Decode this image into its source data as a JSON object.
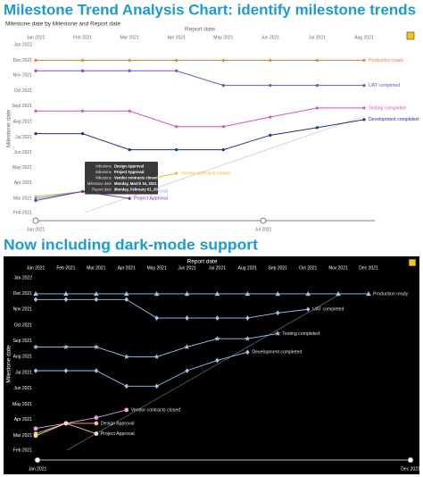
{
  "chart_data": [
    {
      "type": "line",
      "title": "Milestone Trend Analysis Chart: identify milestone trends",
      "subtitle": "Milestone date by Milestone and Report date",
      "background": "#ffffff",
      "text_color": "#666666",
      "x_label": "Report date",
      "y_label": "Milestone date",
      "categories": [
        "Jan 2021",
        "Feb 2021",
        "Mar 2021",
        "Apr 2021",
        "May 2021",
        "Jun 2021",
        "Jul 2021",
        "Aug 2021"
      ],
      "ylim": [
        "2021-02-01",
        "2022-01-01"
      ],
      "yticks": [
        {
          "value": "2022-01-01",
          "label": "Jan 2022"
        },
        {
          "value": "2021-12-01",
          "label": "Dec 2021"
        },
        {
          "value": "2021-11-01",
          "label": "Nov 2021"
        },
        {
          "value": "2021-10-01",
          "label": "Oct 2021"
        },
        {
          "value": "2021-09-01",
          "label": "Sept 2021"
        },
        {
          "value": "2021-08-01",
          "label": "Aug 2021"
        },
        {
          "value": "2021-07-01",
          "label": "Jul 2021"
        },
        {
          "value": "2021-06-01",
          "label": "Jun 2021"
        },
        {
          "value": "2021-05-01",
          "label": "May 2021"
        },
        {
          "value": "2021-04-01",
          "label": "Apr 2021"
        },
        {
          "value": "2021-03-01",
          "label": "Mar 2021"
        },
        {
          "value": "2021-02-01",
          "label": "Feb 2021"
        }
      ],
      "series": [
        {
          "name": "Production ready",
          "color": "#e8823a",
          "marker": "circle",
          "values": [
            "2021-12-01",
            "2021-12-01",
            "2021-12-01",
            "2021-12-01",
            "2021-12-01",
            "2021-12-01",
            "2021-12-01",
            "2021-12-01"
          ]
        },
        {
          "name": "UAT completed",
          "color": "#7b4fc9",
          "marker": "circle",
          "values": [
            "2021-11-10",
            "2021-11-10",
            "2021-11-10",
            "2021-11-10",
            "2021-10-12",
            "2021-10-12",
            "2021-10-12",
            "2021-10-12"
          ]
        },
        {
          "name": "Testing completed",
          "color": "#d64fb8",
          "marker": "circle",
          "values": [
            "2021-08-22",
            "2021-08-22",
            "2021-08-22",
            "2021-07-22",
            "2021-07-22",
            "2021-08-10",
            "2021-08-28",
            "2021-08-28"
          ]
        },
        {
          "name": "Development completed",
          "color": "#1f2f8c",
          "marker": "circle",
          "values": [
            "2021-07-08",
            "2021-07-08",
            "2021-06-06",
            "2021-06-06",
            "2021-06-06",
            "2021-07-05",
            "2021-07-20",
            "2021-08-05"
          ]
        },
        {
          "name": "Vendor contracts closed",
          "color": "#f0b82a",
          "marker": "circle",
          "values": [
            "2021-03-05",
            "2021-03-15",
            "2021-04-01",
            "2021-04-20",
            null,
            null,
            null,
            null
          ]
        },
        {
          "name": "Design Approval",
          "color": "#4aa3df",
          "marker": "circle",
          "values": [
            "2021-03-01",
            "2021-03-15",
            "2021-03-15",
            null,
            null,
            null,
            null,
            null
          ]
        },
        {
          "name": "Project Approval",
          "color": "#7a2fb0",
          "marker": "circle",
          "values": [
            "2021-02-25",
            "2021-03-15",
            "2021-03-01",
            null,
            null,
            null,
            null,
            null
          ]
        }
      ],
      "slider": {
        "from": "Jan 2021",
        "to": "Jul 2021"
      },
      "tooltip": [
        [
          "Milestone",
          "Design Approval"
        ],
        [
          "Milestone",
          "Project Approval"
        ],
        [
          "Milestone",
          "Vendor contracts closed"
        ],
        [
          "Milestone date",
          "Monday, March 15, 2021"
        ],
        [
          "Report date",
          "Monday, February 01, 2021"
        ]
      ]
    },
    {
      "type": "line",
      "title": "Now including dark-mode support",
      "background": "#000000",
      "text_color": "#ffffff",
      "x_label": "Report date",
      "y_label": "Milestone date",
      "categories": [
        "Jan 2021",
        "Feb 2021",
        "Mar 2021",
        "Apr 2021",
        "May 2021",
        "Jun 2021",
        "Jul 2021",
        "Aug 2021",
        "Sep 2021",
        "Oct 2021",
        "Nov 2021",
        "Dec 2021"
      ],
      "ylim": [
        "2021-02-01",
        "2022-01-01"
      ],
      "yticks": [
        {
          "value": "2022-01-01",
          "label": "Jan 2022"
        },
        {
          "value": "2021-12-01",
          "label": "Dec 2021"
        },
        {
          "value": "2021-11-01",
          "label": "Nov 2021"
        },
        {
          "value": "2021-10-01",
          "label": "Oct 2021"
        },
        {
          "value": "2021-09-01",
          "label": "Sep 2021"
        },
        {
          "value": "2021-08-01",
          "label": "Aug 2021"
        },
        {
          "value": "2021-07-01",
          "label": "Jul 2021"
        },
        {
          "value": "2021-06-01",
          "label": "Jun 2021"
        },
        {
          "value": "2021-05-01",
          "label": "May 2021"
        },
        {
          "value": "2021-04-01",
          "label": "Apr 2021"
        },
        {
          "value": "2021-03-01",
          "label": "Mar 2021"
        },
        {
          "value": "2021-02-01",
          "label": "Feb 2021"
        }
      ],
      "series": [
        {
          "name": "Production ready",
          "color": "#9ec9ee",
          "marker": "triangle",
          "values": [
            "2021-12-01",
            "2021-12-01",
            "2021-12-01",
            "2021-12-01",
            "2021-12-01",
            "2021-12-01",
            "2021-12-01",
            "2021-12-01",
            "2021-12-01",
            "2021-12-01",
            "2021-12-01",
            "2021-12-01"
          ]
        },
        {
          "name": "UAT completed",
          "color": "#9ec9ee",
          "marker": "diamond",
          "values": [
            "2021-11-20",
            "2021-11-20",
            "2021-11-20",
            "2021-11-20",
            "2021-10-15",
            "2021-10-15",
            "2021-10-15",
            "2021-10-15",
            "2021-10-25",
            "2021-11-01",
            null,
            null
          ]
        },
        {
          "name": "Testing completed",
          "color": "#9ec9ee",
          "marker": "star",
          "values": [
            "2021-08-20",
            "2021-08-20",
            "2021-08-20",
            "2021-08-01",
            "2021-08-01",
            "2021-08-20",
            "2021-09-05",
            "2021-09-05",
            "2021-09-15",
            null,
            null,
            null
          ]
        },
        {
          "name": "Development completed",
          "color": "#9ec9ee",
          "marker": "diamond",
          "values": [
            "2021-07-05",
            "2021-07-05",
            "2021-07-05",
            "2021-06-05",
            "2021-06-05",
            "2021-07-05",
            "2021-07-25",
            "2021-08-10",
            null,
            null,
            null,
            null
          ]
        },
        {
          "name": "Vendor contracts closed",
          "color": "#f0a0e0",
          "marker": "circle",
          "values": [
            "2021-03-15",
            "2021-03-25",
            "2021-04-05",
            "2021-04-20",
            null,
            null,
            null,
            null,
            null,
            null,
            null,
            null
          ]
        },
        {
          "name": "Design Approval",
          "color": "#f5c080",
          "marker": "circle",
          "values": [
            "2021-03-05",
            "2021-03-25",
            "2021-03-25",
            null,
            null,
            null,
            null,
            null,
            null,
            null,
            null,
            null
          ]
        },
        {
          "name": "Project Approval",
          "color": "#f8d8b0",
          "marker": "circle",
          "values": [
            "2021-03-01",
            "2021-03-25",
            "2021-03-05",
            null,
            null,
            null,
            null,
            null,
            null,
            null,
            null,
            null
          ]
        }
      ],
      "slider": {
        "from": "Jan 2021",
        "to": "Dec 2021"
      }
    }
  ]
}
